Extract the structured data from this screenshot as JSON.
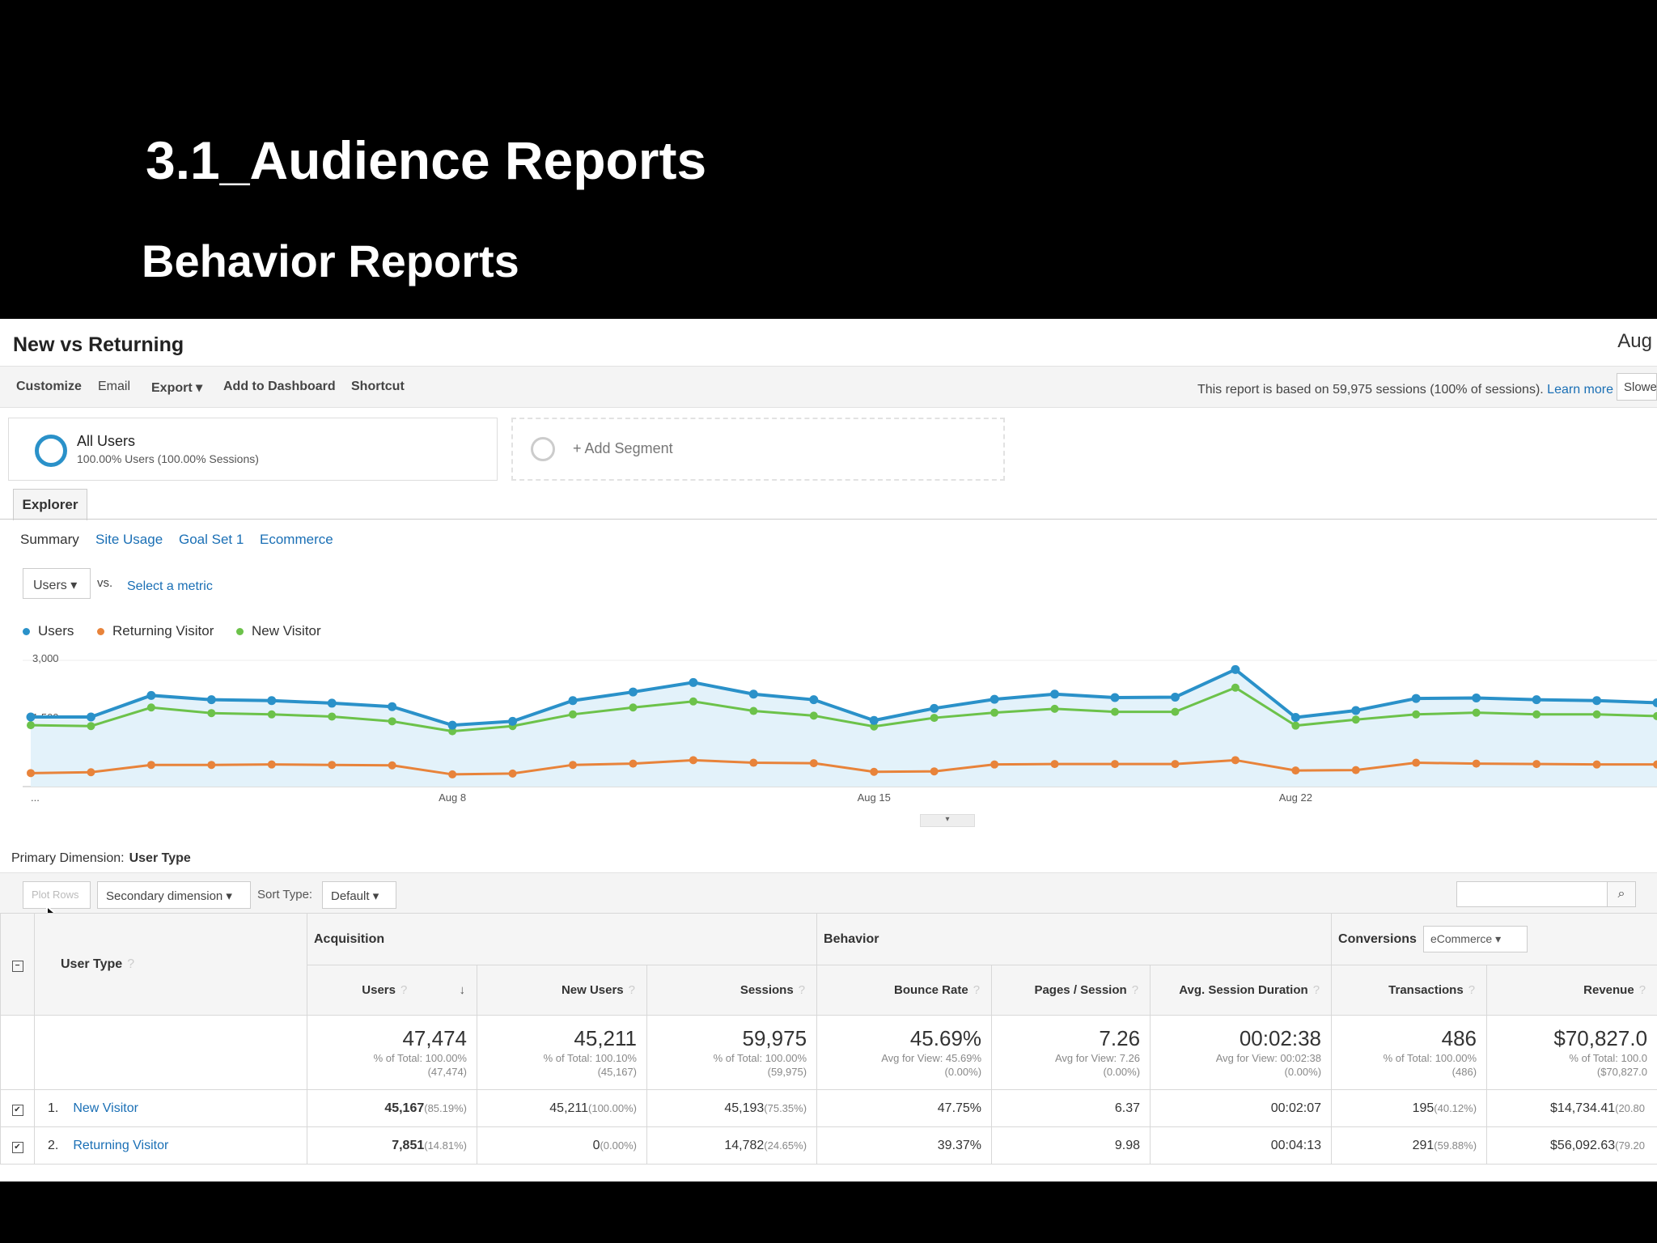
{
  "slide": {
    "title": "3.1_Audience Reports",
    "subtitle": "Behavior Reports"
  },
  "report": {
    "title": "New vs Returning",
    "date_label": "Aug",
    "toolbar": {
      "customize": "Customize",
      "email": "Email",
      "export": "Export ▾",
      "add_dashboard": "Add to Dashboard",
      "shortcut": "Shortcut"
    },
    "note": "This report is based on 59,975 sessions (100% of sessions).",
    "learn_more": "Learn more",
    "slower_label": "Slowe"
  },
  "segments": {
    "all_users": {
      "name": "All Users",
      "sub": "100.00% Users (100.00% Sessions)"
    },
    "add_segment": "+ Add Segment"
  },
  "explorer": {
    "tab": "Explorer",
    "subtabs": [
      "Summary",
      "Site Usage",
      "Goal Set 1",
      "Ecommerce"
    ],
    "metric": "Users ▾",
    "vs": "vs.",
    "select_metric": "Select a metric"
  },
  "colors": {
    "users": "#2a91c9",
    "returning": "#e8833a",
    "new": "#6cc24a",
    "link": "#1a6fb5"
  },
  "chart_data": {
    "type": "line",
    "y_ticks": [
      "3,000",
      "1,500"
    ],
    "x_ticks": [
      "...",
      "Aug 8",
      "Aug 15",
      "Aug 22"
    ],
    "ylim": [
      0,
      3000
    ],
    "series": [
      {
        "name": "Users",
        "color": "#2a91c9",
        "values": [
          1500,
          1500,
          2000,
          1900,
          1880,
          1820,
          1740,
          1310,
          1400,
          1880,
          2080,
          2300,
          2030,
          1900,
          1420,
          1700,
          1910,
          2030,
          1950,
          1960,
          2600,
          1490,
          1650,
          1930,
          1940,
          1900,
          1880,
          1830
        ]
      },
      {
        "name": "Returning Visitor",
        "color": "#e8833a",
        "values": [
          200,
          220,
          390,
          390,
          400,
          390,
          380,
          170,
          190,
          390,
          420,
          500,
          440,
          430,
          230,
          240,
          400,
          410,
          410,
          410,
          500,
          260,
          270,
          440,
          420,
          410,
          400,
          400
        ]
      },
      {
        "name": "New Visitor",
        "color": "#6cc24a",
        "values": [
          1310,
          1290,
          1720,
          1590,
          1560,
          1510,
          1400,
          1170,
          1290,
          1560,
          1720,
          1860,
          1640,
          1530,
          1280,
          1480,
          1600,
          1690,
          1620,
          1620,
          2180,
          1300,
          1440,
          1560,
          1600,
          1560,
          1560,
          1520
        ]
      }
    ]
  },
  "table": {
    "primary_dimension_label": "Primary Dimension:",
    "primary_dimension": "User Type",
    "plot_rows": "Plot Rows",
    "secondary_dimension": "Secondary dimension ▾",
    "sort_type_label": "Sort Type:",
    "sort_type": "Default ▾",
    "groups": {
      "acquisition": "Acquisition",
      "behavior": "Behavior",
      "conversions": "Conversions",
      "conversion_select": "eCommerce ▾"
    },
    "dimension_header": "User Type",
    "columns": [
      "Users",
      "New Users",
      "Sessions",
      "Bounce Rate",
      "Pages / Session",
      "Avg. Session Duration",
      "Transactions",
      "Revenue"
    ],
    "totals": [
      {
        "value": "47,474",
        "line1": "% of Total: 100.00%",
        "line2": "(47,474)"
      },
      {
        "value": "45,211",
        "line1": "% of Total: 100.10%",
        "line2": "(45,167)"
      },
      {
        "value": "59,975",
        "line1": "% of Total: 100.00%",
        "line2": "(59,975)"
      },
      {
        "value": "45.69%",
        "line1": "Avg for View: 45.69%",
        "line2": "(0.00%)"
      },
      {
        "value": "7.26",
        "line1": "Avg for View: 7.26",
        "line2": "(0.00%)"
      },
      {
        "value": "00:02:38",
        "line1": "Avg for View: 00:02:38",
        "line2": "(0.00%)"
      },
      {
        "value": "486",
        "line1": "% of Total: 100.00%",
        "line2": "(486)"
      },
      {
        "value": "$70,827.0",
        "line1": "% of Total: 100.0",
        "line2": "($70,827.0"
      }
    ],
    "rows": [
      {
        "index": "1.",
        "name": "New Visitor",
        "users": "45,167",
        "users_pct": "(85.19%)",
        "new_users": "45,211",
        "new_users_pct": "(100.00%)",
        "sessions": "45,193",
        "sessions_pct": "(75.35%)",
        "bounce": "47.75%",
        "pages": "6.37",
        "duration": "00:02:07",
        "transactions": "195",
        "transactions_pct": "(40.12%)",
        "revenue": "$14,734.41",
        "revenue_pct": "(20.80"
      },
      {
        "index": "2.",
        "name": "Returning Visitor",
        "users": "7,851",
        "users_pct": "(14.81%)",
        "new_users": "0",
        "new_users_pct": "(0.00%)",
        "sessions": "14,782",
        "sessions_pct": "(24.65%)",
        "bounce": "39.37%",
        "pages": "9.98",
        "duration": "00:04:13",
        "transactions": "291",
        "transactions_pct": "(59.88%)",
        "revenue": "$56,092.63",
        "revenue_pct": "(79.20"
      }
    ]
  }
}
